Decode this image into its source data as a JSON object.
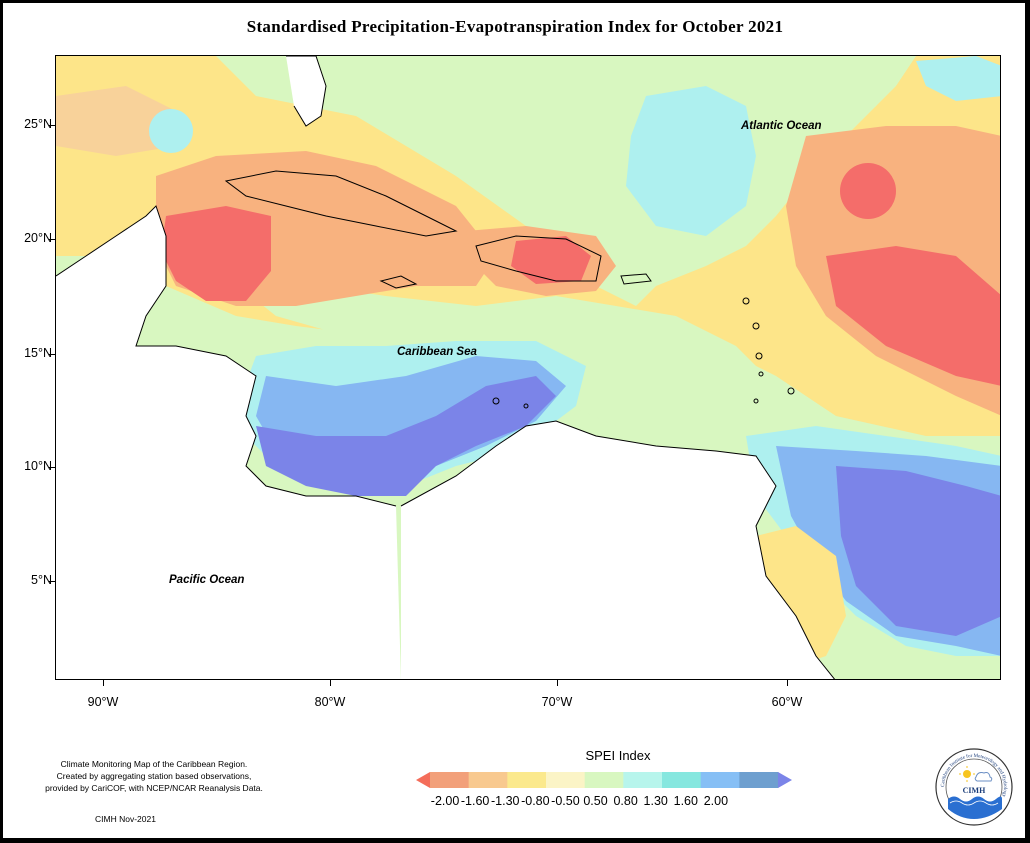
{
  "title": "Standardised Precipitation-Evapotranspiration Index for October 2021",
  "axes": {
    "lat_labels": [
      "25°N",
      "20°N",
      "15°N",
      "10°N",
      "5°N"
    ],
    "lon_labels": [
      "90°W",
      "80°W",
      "70°W",
      "60°W"
    ]
  },
  "map_labels": {
    "atlantic": "Atlantic Ocean",
    "caribbean": "Caribbean Sea",
    "pacific": "Pacific Ocean"
  },
  "legend": {
    "title": "SPEI Index",
    "labels": [
      "-2.00",
      "-1.60",
      "-1.30",
      "-0.80",
      "-0.50",
      "0.50",
      "0.80",
      "1.30",
      "1.60",
      "2.00"
    ],
    "colors": [
      "#f46d5a",
      "#f2a07a",
      "#f8c98f",
      "#fbe98d",
      "#fbf4c6",
      "#d8f7c0",
      "#b7f5ec",
      "#86e7df",
      "#86bff5",
      "#6e9fcf",
      "#7b84e8"
    ]
  },
  "credit": {
    "line1": "Climate Monitoring Map of the Caribbean Region.",
    "line2": "Created by aggregating station based observations,",
    "line3": "provided by CariCOF, with NCEP/NCAR Reanalysis Data.",
    "date": "CIMH Nov-2021"
  },
  "logo": {
    "name": "CIMH",
    "ring_text": "Caribbean Institute for Meteorology and Hydrology"
  },
  "colors": {
    "very_dry": "#f46d6a",
    "dry": "#f8b27f",
    "mild_dry": "#fde589",
    "normal": "#d8f7c0",
    "mild_wet": "#aef0ef",
    "wet": "#86b7f2",
    "very_wet": "#7b84e8",
    "land": "#ffffff"
  }
}
